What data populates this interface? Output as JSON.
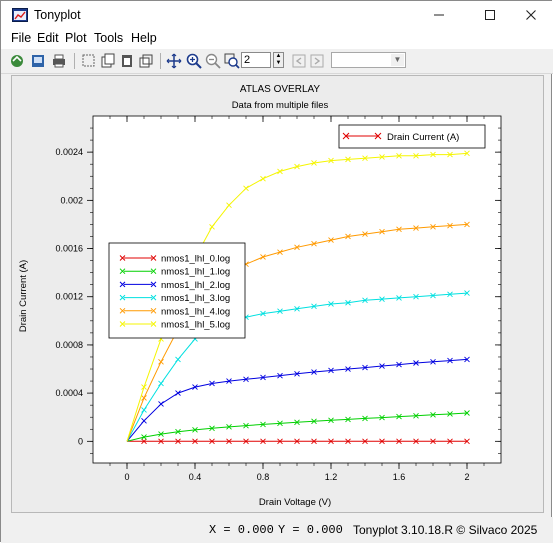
{
  "window": {
    "title": "Tonyplot"
  },
  "menu": [
    "File",
    "Edit",
    "Plot",
    "Tools",
    "Help"
  ],
  "toolbar": {
    "zoom_value": "2"
  },
  "status": {
    "x_readout": "X = 0.000",
    "y_readout": "Y = 0.000",
    "credit": "Tonyplot 3.10.18.R © Silvaco 2025"
  },
  "chart_data": {
    "type": "line",
    "title": "ATLAS OVERLAY",
    "subtitle": "Data from multiple files",
    "xlabel": "Drain Voltage (V)",
    "ylabel": "Drain Current (A)",
    "xlim": [
      -0.2,
      2.2
    ],
    "ylim": [
      -0.00018,
      0.0027
    ],
    "xticks": [
      "0",
      "0.4",
      "0.8",
      "1.2",
      "1.6",
      "2"
    ],
    "yticks": [
      "0",
      "0.0004",
      "0.0008",
      "0.0012",
      "0.0016",
      "0.002",
      "0.0024"
    ],
    "top_legend": "Drain Current (A)",
    "x": [
      0,
      0.1,
      0.2,
      0.3,
      0.4,
      0.5,
      0.6,
      0.7,
      0.8,
      0.9,
      1.0,
      1.1,
      1.2,
      1.3,
      1.4,
      1.5,
      1.6,
      1.7,
      1.8,
      1.9,
      2.0
    ],
    "series": [
      {
        "name": "nmos1_lhl_0.log",
        "color": "#e00000",
        "values": [
          0,
          0,
          0,
          0,
          0,
          0,
          0,
          0,
          0,
          0,
          0,
          0,
          0,
          0,
          0,
          0,
          0,
          0,
          0,
          0,
          0
        ]
      },
      {
        "name": "nmos1_lhl_1.log",
        "color": "#00d000",
        "values": [
          0,
          3.5e-05,
          6e-05,
          8e-05,
          9.5e-05,
          0.000108,
          0.00012,
          0.00013,
          0.00014,
          0.000149,
          0.000158,
          0.000166,
          0.000174,
          0.000182,
          0.00019,
          0.000197,
          0.000205,
          0.000212,
          0.00022,
          0.000227,
          0.000235
        ]
      },
      {
        "name": "nmos1_lhl_2.log",
        "color": "#0000e0",
        "values": [
          0,
          0.00017,
          0.00031,
          0.0004,
          0.00045,
          0.00048,
          0.0005,
          0.000515,
          0.00053,
          0.000545,
          0.00056,
          0.000575,
          0.000588,
          0.0006,
          0.000612,
          0.000625,
          0.000637,
          0.00065,
          0.00066,
          0.00067,
          0.00068
        ]
      },
      {
        "name": "nmos1_lhl_3.log",
        "color": "#00e0e0",
        "values": [
          0,
          0.00026,
          0.00048,
          0.00068,
          0.00085,
          0.00095,
          0.001,
          0.00103,
          0.00106,
          0.00108,
          0.0011,
          0.00112,
          0.00114,
          0.00115,
          0.00117,
          0.00118,
          0.00119,
          0.0012,
          0.00121,
          0.00122,
          0.00123
        ]
      },
      {
        "name": "nmos1_lhl_4.log",
        "color": "#ff9a00",
        "values": [
          0,
          0.00036,
          0.00066,
          0.00093,
          0.00114,
          0.00129,
          0.0014,
          0.00147,
          0.00153,
          0.00157,
          0.00161,
          0.00164,
          0.00167,
          0.0017,
          0.00172,
          0.00174,
          0.00176,
          0.00177,
          0.00178,
          0.00179,
          0.0018
        ]
      },
      {
        "name": "nmos1_lhl_5.log",
        "color": "#f5f500",
        "values": [
          0,
          0.00045,
          0.00085,
          0.0012,
          0.00152,
          0.00178,
          0.00196,
          0.0021,
          0.00218,
          0.00224,
          0.00228,
          0.00231,
          0.00233,
          0.00234,
          0.00235,
          0.00236,
          0.00237,
          0.00237,
          0.00238,
          0.00238,
          0.00239
        ]
      }
    ],
    "grid": false,
    "legend_position": "left-middle"
  }
}
